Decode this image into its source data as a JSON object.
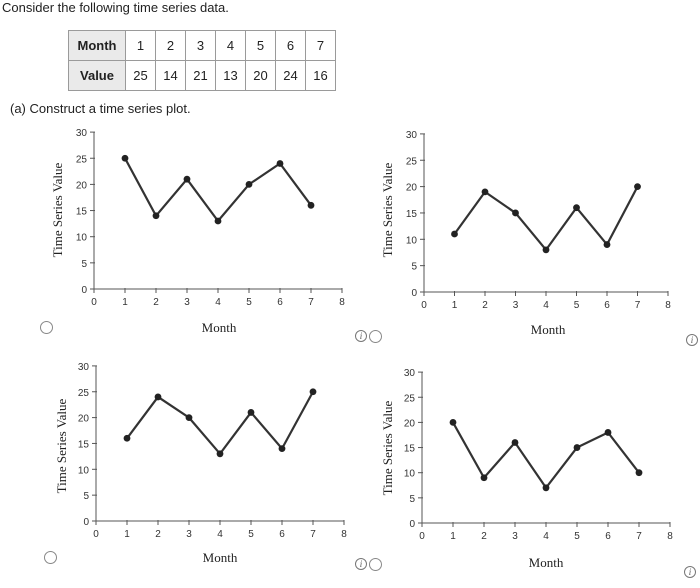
{
  "question": {
    "intro": "Consider the following time series data.",
    "part_a": "(a) Construct a time series plot."
  },
  "table": {
    "row1_header": "Month",
    "row2_header": "Value",
    "months": [
      "1",
      "2",
      "3",
      "4",
      "5",
      "6",
      "7"
    ],
    "values": [
      "25",
      "14",
      "21",
      "13",
      "20",
      "24",
      "16"
    ]
  },
  "chart_data": [
    {
      "type": "line",
      "xlabel": "Month",
      "ylabel": "Time Series Value",
      "xlim": [
        0,
        8
      ],
      "ylim": [
        0,
        30
      ],
      "x": [
        1,
        2,
        3,
        4,
        5,
        6,
        7
      ],
      "y": [
        25,
        14,
        21,
        13,
        20,
        24,
        16
      ]
    },
    {
      "type": "line",
      "xlabel": "Month",
      "ylabel": "Time Series Value",
      "xlim": [
        0,
        8
      ],
      "ylim": [
        0,
        30
      ],
      "x": [
        1,
        2,
        3,
        4,
        5,
        6,
        7
      ],
      "y": [
        11,
        19,
        15,
        8,
        16,
        9,
        20
      ]
    },
    {
      "type": "line",
      "xlabel": "Month",
      "ylabel": "Time Series Value",
      "xlim": [
        0,
        8
      ],
      "ylim": [
        0,
        30
      ],
      "x": [
        1,
        2,
        3,
        4,
        5,
        6,
        7
      ],
      "y": [
        16,
        24,
        20,
        13,
        21,
        14,
        25
      ]
    },
    {
      "type": "line",
      "xlabel": "Month",
      "ylabel": "Time Series Value",
      "xlim": [
        0,
        8
      ],
      "ylim": [
        0,
        30
      ],
      "x": [
        1,
        2,
        3,
        4,
        5,
        6,
        7
      ],
      "y": [
        20,
        9,
        16,
        7,
        15,
        18,
        10
      ]
    }
  ],
  "info_glyph": "i"
}
